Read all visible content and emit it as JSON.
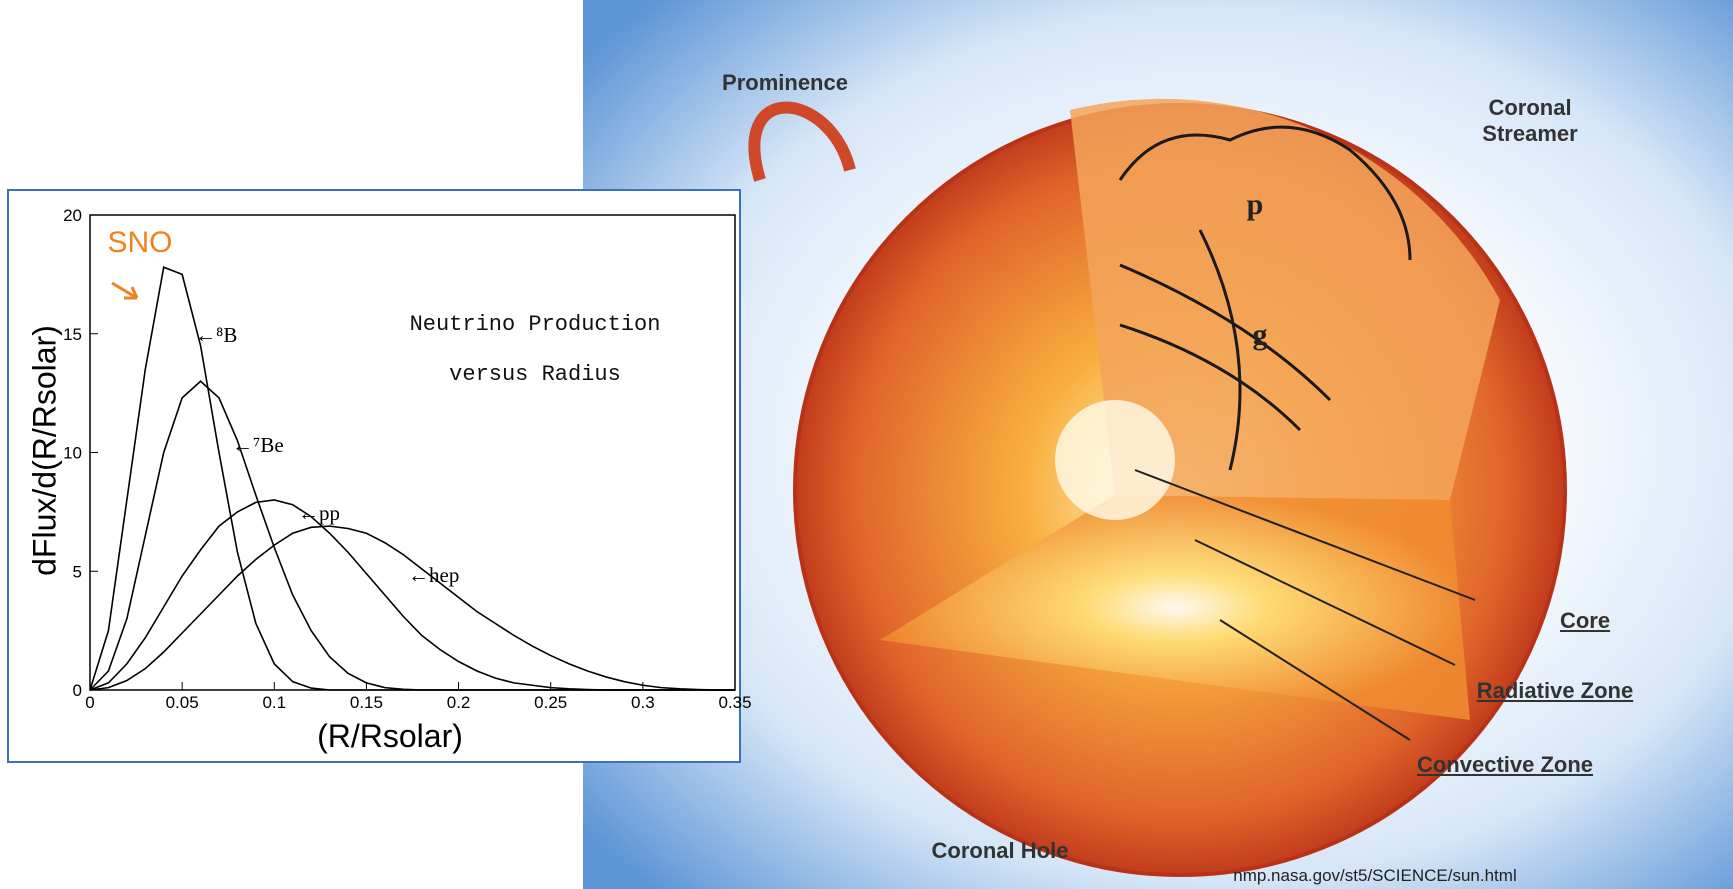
{
  "chart_data": {
    "type": "line",
    "title": "Neutrino Production versus Radius",
    "annotation": "SNO",
    "xlabel": "(R/Rsolar)",
    "ylabel": "dFlux/d(R/Rsolar)",
    "x": [
      0,
      0.01,
      0.02,
      0.03,
      0.04,
      0.05,
      0.06,
      0.07,
      0.08,
      0.09,
      0.1,
      0.11,
      0.12,
      0.13,
      0.14,
      0.15,
      0.16,
      0.17,
      0.18,
      0.19,
      0.2,
      0.21,
      0.22,
      0.23,
      0.24,
      0.25,
      0.26,
      0.27,
      0.28,
      0.29,
      0.3,
      0.31,
      0.32,
      0.33,
      0.34,
      0.35
    ],
    "series": [
      {
        "name": "←⁸B",
        "color": "#000000",
        "values": [
          0,
          2.5,
          8,
          13.5,
          17.8,
          17.5,
          14.5,
          10,
          5.8,
          2.8,
          1.1,
          0.35,
          0.08,
          0,
          0,
          0,
          0,
          0,
          0,
          0,
          0,
          0,
          0,
          0,
          0,
          0,
          0,
          0,
          0,
          0,
          0,
          0,
          0,
          0,
          0,
          0
        ]
      },
      {
        "name": "←⁷Be",
        "color": "#000000",
        "values": [
          0,
          0.8,
          3,
          6.5,
          10,
          12.3,
          13,
          12.3,
          10.5,
          8.2,
          6,
          4,
          2.5,
          1.4,
          0.7,
          0.3,
          0.1,
          0.03,
          0,
          0,
          0,
          0,
          0,
          0,
          0,
          0,
          0,
          0,
          0,
          0,
          0,
          0,
          0,
          0,
          0,
          0
        ]
      },
      {
        "name": "←pp",
        "color": "#000000",
        "values": [
          0,
          0.3,
          1.1,
          2.2,
          3.5,
          4.8,
          5.9,
          6.9,
          7.5,
          7.9,
          8,
          7.8,
          7.3,
          6.6,
          5.8,
          4.9,
          4,
          3.1,
          2.3,
          1.7,
          1.2,
          0.8,
          0.5,
          0.3,
          0.2,
          0.1,
          0.05,
          0.02,
          0,
          0,
          0,
          0,
          0,
          0,
          0,
          0
        ]
      },
      {
        "name": "←hep",
        "color": "#000000",
        "values": [
          0,
          0.1,
          0.4,
          0.9,
          1.6,
          2.4,
          3.2,
          4,
          4.8,
          5.5,
          6.1,
          6.6,
          6.85,
          6.9,
          6.8,
          6.6,
          6.2,
          5.7,
          5.1,
          4.5,
          3.9,
          3.3,
          2.8,
          2.3,
          1.85,
          1.45,
          1.1,
          0.8,
          0.55,
          0.35,
          0.2,
          0.1,
          0.05,
          0.02,
          0,
          0
        ]
      }
    ],
    "xlim": [
      0,
      0.35
    ],
    "xticks": [
      0,
      0.05,
      0.1,
      0.15,
      0.2,
      0.25,
      0.3,
      0.35
    ],
    "ylim": [
      0,
      20
    ],
    "yticks": [
      0,
      5,
      10,
      15,
      20
    ]
  },
  "illustration": {
    "labels": {
      "prominence": "Prominence",
      "coronal_streamer": "Coronal Streamer",
      "p_modes": "p",
      "g_modes": "g",
      "core": "Core",
      "radiative_zone": "Radiative Zone",
      "convective_zone": "Convective Zone",
      "coronal_hole": "Coronal Hole"
    },
    "source": "nmp.nasa.gov/st5/SCIENCE/sun.html"
  }
}
